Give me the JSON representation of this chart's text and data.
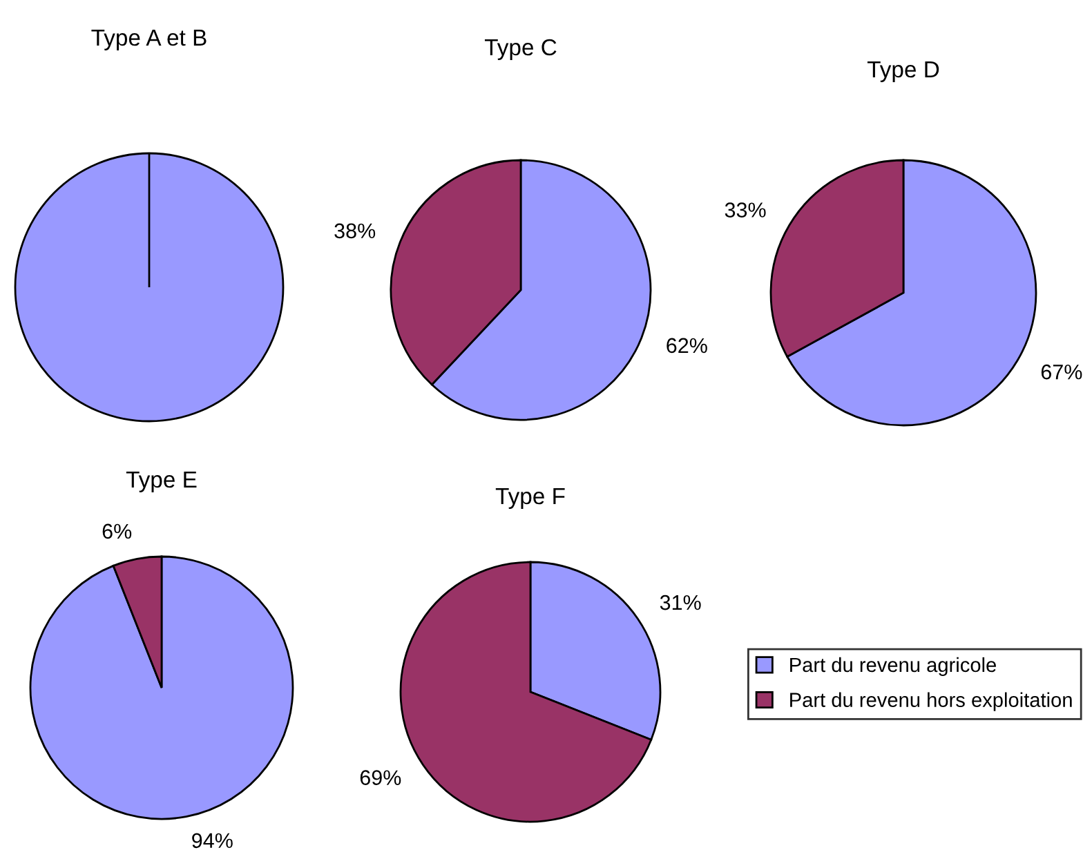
{
  "chart_data": [
    {
      "type": "pie",
      "title": "Type A et B",
      "categories": [
        null,
        null
      ],
      "values": [
        100,
        0
      ],
      "colors": [
        "#9999ff",
        "#993366"
      ],
      "value_labels": [
        null,
        null
      ]
    },
    {
      "type": "pie",
      "title": "Type C",
      "categories": [
        null,
        null
      ],
      "values": [
        62,
        38
      ],
      "colors": [
        "#9999ff",
        "#993366"
      ],
      "value_labels": [
        "62%",
        "38%"
      ]
    },
    {
      "type": "pie",
      "title": "Type D",
      "categories": [
        null,
        null
      ],
      "values": [
        67,
        33
      ],
      "colors": [
        "#9999ff",
        "#993366"
      ],
      "value_labels": [
        "67%",
        "33%"
      ]
    },
    {
      "type": "pie",
      "title": "Type E",
      "categories": [
        null,
        null
      ],
      "values": [
        94,
        6
      ],
      "colors": [
        "#9999ff",
        "#993366"
      ],
      "value_labels": [
        "94%",
        "6%"
      ]
    },
    {
      "type": "pie",
      "title": "Type F",
      "categories": [
        "Part du revenu agricole",
        "Part du revenu hors exploitation"
      ],
      "values": [
        31,
        69
      ],
      "colors": [
        "#9999ff",
        "#993366"
      ],
      "value_labels": [
        "31%",
        "69%"
      ],
      "legend": "right"
    }
  ]
}
